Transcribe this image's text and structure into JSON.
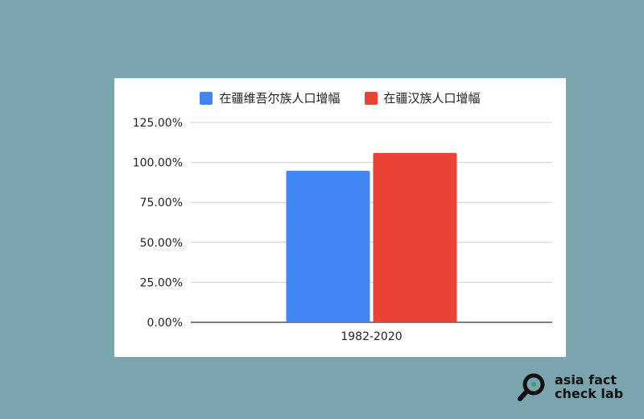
{
  "chart_data": {
    "type": "bar",
    "categories": [
      "1982-2020"
    ],
    "series": [
      {
        "name": "在疆维吾尔族人口增幅",
        "values": [
          94.8
        ],
        "color": "#4285f4"
      },
      {
        "name": "在疆汉族人口增幅",
        "values": [
          106.0
        ],
        "color": "#ea4335"
      }
    ],
    "ylim": [
      0,
      125
    ],
    "yticks": [
      0,
      25,
      50,
      75,
      100,
      125
    ],
    "ytick_labels": [
      "0.00%",
      "25.00%",
      "50.00%",
      "75.00%",
      "100.00%",
      "125.00%"
    ],
    "grid": true,
    "legend": "top-center"
  },
  "logo": {
    "line1": "asia fact",
    "line2": "check lab",
    "icon": "magnifier-icon"
  }
}
